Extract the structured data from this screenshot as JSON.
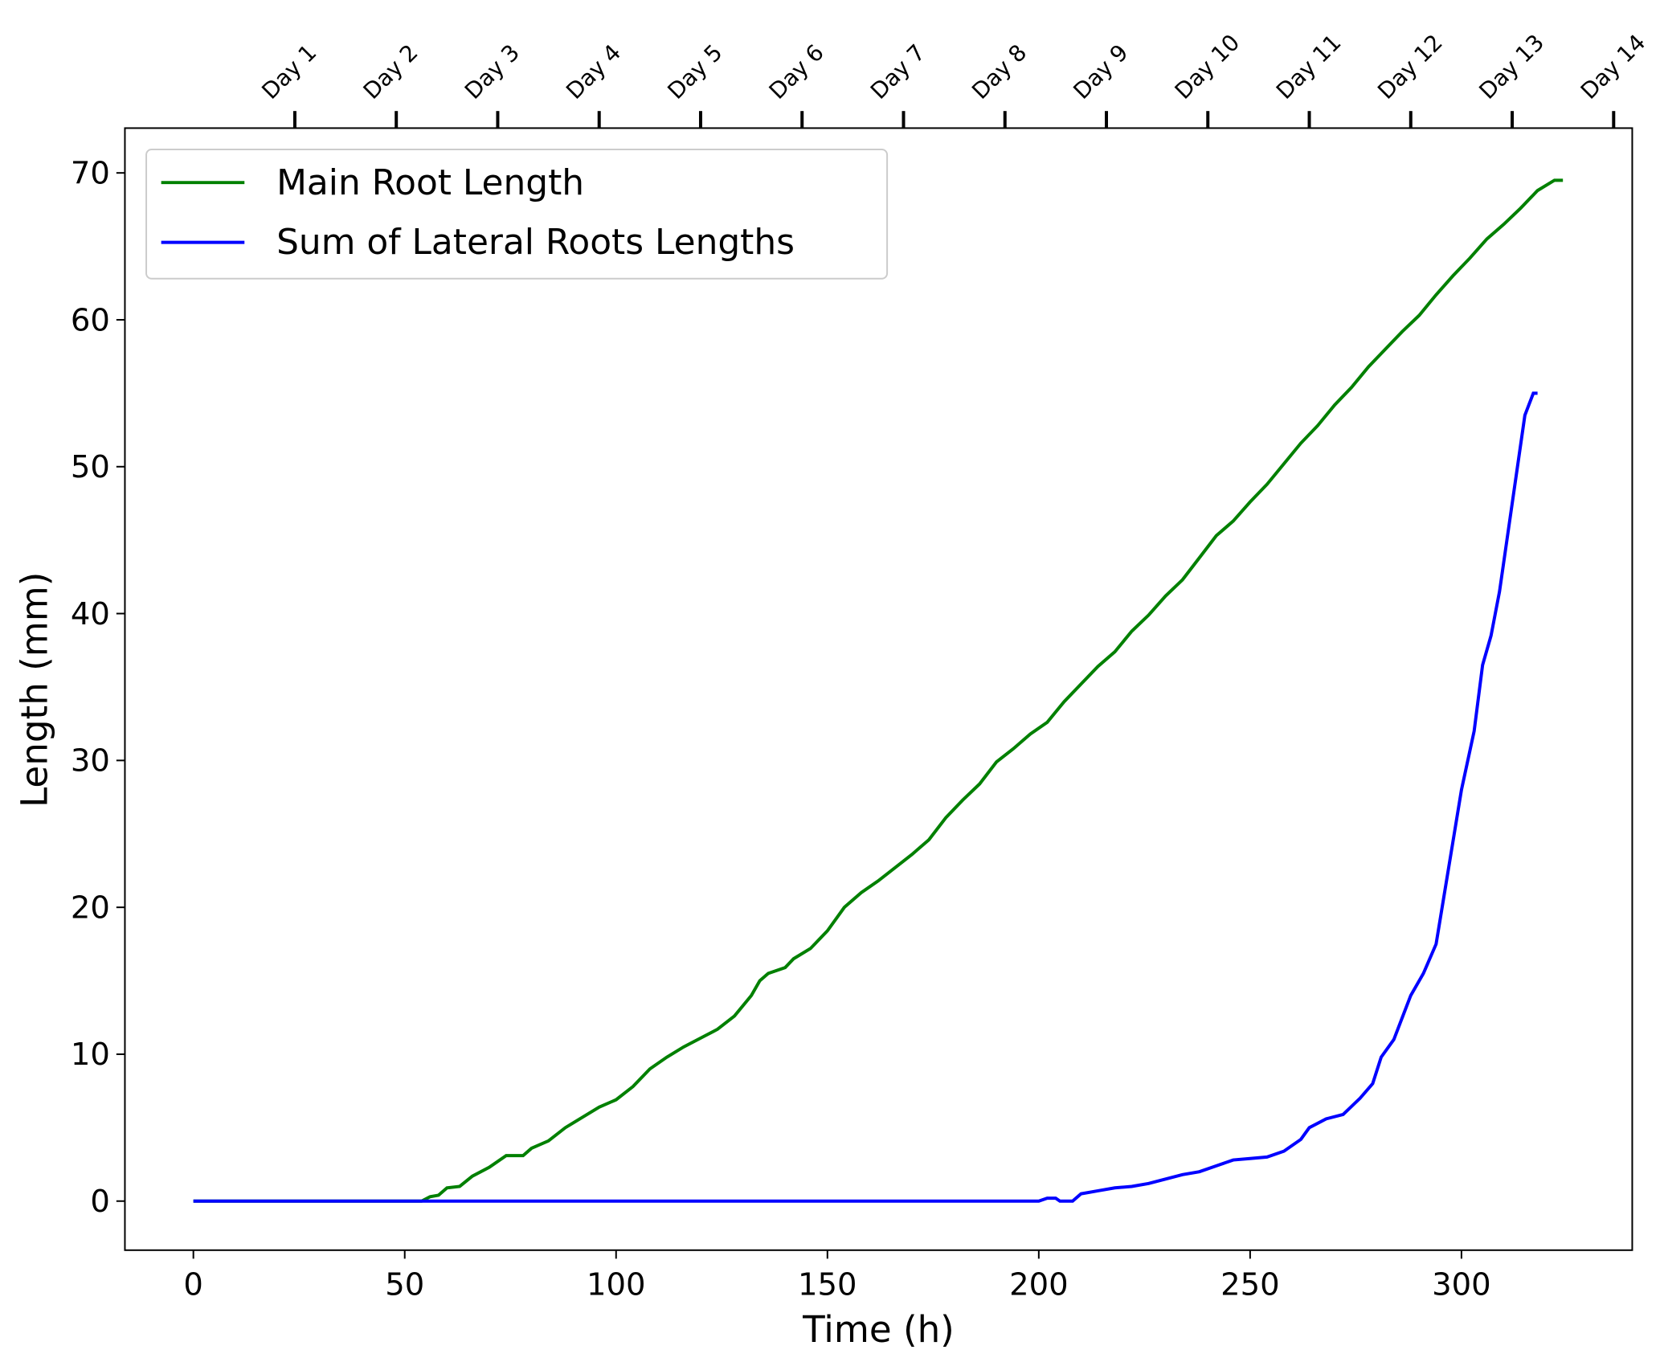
{
  "chart_data": {
    "type": "line",
    "xlabel": "Time (h)",
    "ylabel": "Length (mm)",
    "xlim": [
      -16.2,
      340.4
    ],
    "ylim": [
      -3.34,
      73.05
    ],
    "xticks": [
      0,
      50,
      100,
      150,
      200,
      250,
      300
    ],
    "yticks": [
      0,
      10,
      20,
      30,
      40,
      50,
      60,
      70
    ],
    "x2ticks": [
      {
        "value": 24,
        "label": "Day 1"
      },
      {
        "value": 48,
        "label": "Day 2"
      },
      {
        "value": 72,
        "label": "Day 3"
      },
      {
        "value": 96,
        "label": "Day 4"
      },
      {
        "value": 120,
        "label": "Day 5"
      },
      {
        "value": 144,
        "label": "Day 6"
      },
      {
        "value": 168,
        "label": "Day 7"
      },
      {
        "value": 192,
        "label": "Day 8"
      },
      {
        "value": 216,
        "label": "Day 9"
      },
      {
        "value": 240,
        "label": "Day 10"
      },
      {
        "value": 264,
        "label": "Day 11"
      },
      {
        "value": 288,
        "label": "Day 12"
      },
      {
        "value": 312,
        "label": "Day 13"
      },
      {
        "value": 336,
        "label": "Day 14"
      }
    ],
    "legend": "upper left",
    "series": [
      {
        "name": "Main Root Length",
        "color": "#008000",
        "x": [
          0,
          54,
          56,
          58,
          60,
          63,
          66,
          70,
          74,
          78,
          80,
          84,
          88,
          92,
          96,
          100,
          104,
          108,
          112,
          116,
          120,
          124,
          128,
          132,
          134,
          136,
          140,
          142,
          146,
          150,
          154,
          158,
          162,
          166,
          170,
          174,
          178,
          182,
          186,
          190,
          194,
          198,
          202,
          206,
          210,
          214,
          218,
          222,
          226,
          230,
          234,
          238,
          242,
          246,
          250,
          254,
          258,
          262,
          266,
          270,
          274,
          278,
          282,
          286,
          290,
          294,
          298,
          302,
          306,
          310,
          314,
          318,
          322,
          324
        ],
        "values": [
          0,
          0,
          0.3,
          0.4,
          0.9,
          1.0,
          1.7,
          2.3,
          3.1,
          3.1,
          3.6,
          4.1,
          5.0,
          5.7,
          6.4,
          6.9,
          7.8,
          9.0,
          9.8,
          10.5,
          11.1,
          11.7,
          12.6,
          14.0,
          15.0,
          15.5,
          15.9,
          16.5,
          17.2,
          18.4,
          20.0,
          21.0,
          21.8,
          22.7,
          23.6,
          24.6,
          26.1,
          27.3,
          28.4,
          29.9,
          30.8,
          31.8,
          32.6,
          34.0,
          35.2,
          36.4,
          37.4,
          38.8,
          39.9,
          41.2,
          42.3,
          43.8,
          45.3,
          46.3,
          47.6,
          48.8,
          50.2,
          51.6,
          52.8,
          54.2,
          55.4,
          56.8,
          58.0,
          59.2,
          60.3,
          61.7,
          63.0,
          64.2,
          65.5,
          66.5,
          67.6,
          68.8,
          69.5,
          69.5
        ]
      },
      {
        "name": "Sum of Lateral Roots Lengths",
        "color": "#0000ff",
        "x": [
          0,
          200,
          202,
          204,
          205,
          208,
          210,
          214,
          218,
          222,
          226,
          230,
          234,
          238,
          242,
          246,
          250,
          254,
          258,
          262,
          264,
          268,
          272,
          276,
          279,
          281,
          284,
          286,
          288,
          291,
          294,
          296,
          298,
          300,
          303,
          305,
          307,
          309,
          311,
          313,
          315,
          317,
          318
        ],
        "values": [
          0,
          0,
          0.2,
          0.2,
          0,
          0,
          0.5,
          0.7,
          0.9,
          1.0,
          1.2,
          1.5,
          1.8,
          2.0,
          2.4,
          2.8,
          2.9,
          3.0,
          3.4,
          4.2,
          5.0,
          5.6,
          5.9,
          7.0,
          8.0,
          9.8,
          11.0,
          12.5,
          14.0,
          15.5,
          17.5,
          21.0,
          24.5,
          28.0,
          32.0,
          36.5,
          38.5,
          41.5,
          45.5,
          49.5,
          53.5,
          55.0,
          55.0
        ]
      }
    ]
  }
}
